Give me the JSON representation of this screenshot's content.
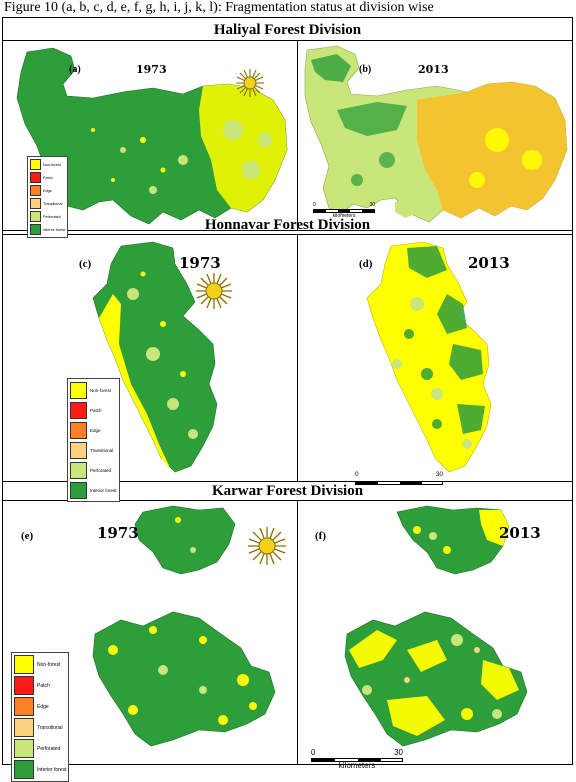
{
  "caption": "Figure 10 (a, b, c, d, e, f, g, h, i, j, k, l): Fragmentation status at division wise",
  "colors": {
    "non_forest": "#ffff00",
    "patch": "#ff1a1a",
    "edge": "#ff7f27",
    "transitional": "#ffd27f",
    "perforated": "#c8e67a",
    "interior_forest": "#2e9e3a"
  },
  "legend_items": [
    "Non-forest",
    "Patch",
    "Edge",
    "Transitional",
    "Perforated",
    "Interior forest"
  ],
  "scale": {
    "start": "0",
    "end": "30",
    "unit": "kilometers"
  },
  "divisions": [
    {
      "title": "Haliyal Forest Division",
      "panels": [
        {
          "label": "(a)",
          "year": "1973"
        },
        {
          "label": "(b)",
          "year": "2013"
        }
      ]
    },
    {
      "title": "Honnavar Forest Division",
      "panels": [
        {
          "label": "(c)",
          "year": "1973"
        },
        {
          "label": "(d)",
          "year": "2013"
        }
      ]
    },
    {
      "title": "Karwar Forest Division",
      "panels": [
        {
          "label": "(e)",
          "year": "1973"
        },
        {
          "label": "(f)",
          "year": "2013"
        }
      ]
    }
  ]
}
